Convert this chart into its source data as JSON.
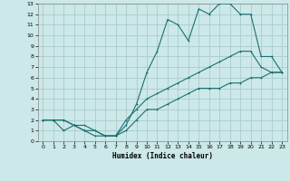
{
  "title": "",
  "xlabel": "Humidex (Indice chaleur)",
  "ylabel": "",
  "bg_color": "#cce8e8",
  "line_color": "#1a7070",
  "grid_color": "#aacccc",
  "xlim": [
    -0.5,
    23.5
  ],
  "ylim": [
    0,
    13
  ],
  "xticks": [
    0,
    1,
    2,
    3,
    4,
    5,
    6,
    7,
    8,
    9,
    10,
    11,
    12,
    13,
    14,
    15,
    16,
    17,
    18,
    19,
    20,
    21,
    22,
    23
  ],
  "yticks": [
    0,
    1,
    2,
    3,
    4,
    5,
    6,
    7,
    8,
    9,
    10,
    11,
    12,
    13
  ],
  "line1_x": [
    0,
    1,
    2,
    3,
    4,
    5,
    6,
    7,
    8,
    9,
    10,
    11,
    12,
    13,
    14,
    15,
    16,
    17,
    18,
    19,
    20,
    21,
    22,
    23
  ],
  "line1_y": [
    2,
    2,
    2,
    1.5,
    1,
    1,
    0.5,
    0.5,
    1.5,
    3.5,
    6.5,
    8.5,
    11.5,
    11,
    9.5,
    12.5,
    12,
    13,
    13,
    12,
    12,
    8,
    8,
    6.5
  ],
  "line2_x": [
    0,
    1,
    2,
    3,
    4,
    5,
    6,
    7,
    8,
    9,
    10,
    11,
    12,
    13,
    14,
    15,
    16,
    17,
    18,
    19,
    20,
    21,
    22,
    23
  ],
  "line2_y": [
    2,
    2,
    1,
    1.5,
    1.5,
    1,
    0.5,
    0.5,
    2,
    3,
    4,
    4.5,
    5,
    5.5,
    6,
    6.5,
    7,
    7.5,
    8,
    8.5,
    8.5,
    7,
    6.5,
    6.5
  ],
  "line3_x": [
    0,
    1,
    2,
    3,
    4,
    5,
    6,
    7,
    8,
    9,
    10,
    11,
    12,
    13,
    14,
    15,
    16,
    17,
    18,
    19,
    20,
    21,
    22,
    23
  ],
  "line3_y": [
    2,
    2,
    2,
    1.5,
    1,
    0.5,
    0.5,
    0.5,
    1,
    2,
    3,
    3,
    3.5,
    4,
    4.5,
    5,
    5,
    5,
    5.5,
    5.5,
    6,
    6,
    6.5,
    6.5
  ]
}
